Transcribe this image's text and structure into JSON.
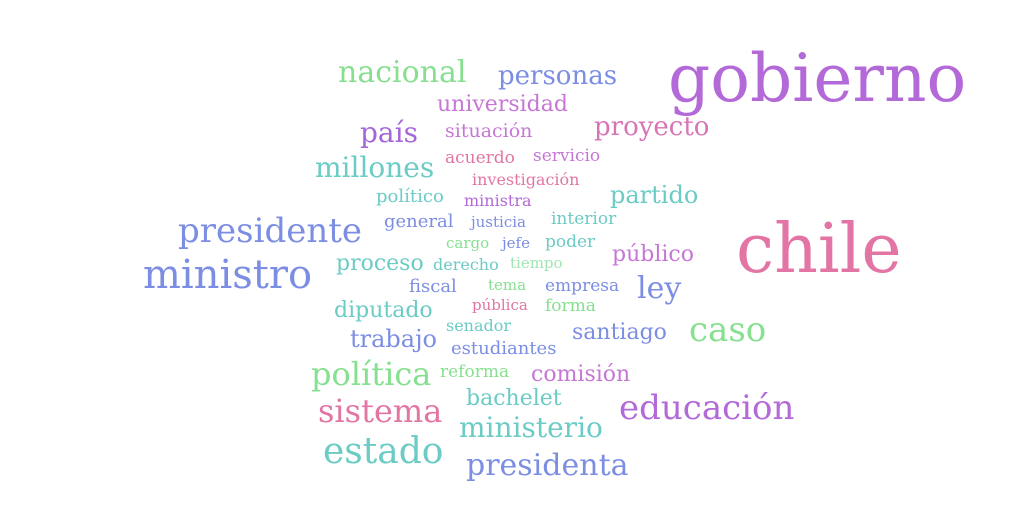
{
  "words": [
    {
      "text": "gobierno",
      "color": "#b469d8"
    },
    {
      "text": "chile",
      "color": "#e275a4"
    },
    {
      "text": "ministro",
      "color": "#7b8ee3"
    },
    {
      "text": "presidente",
      "color": "#7b8ee3"
    },
    {
      "text": "nacional",
      "color": "#86e08f"
    },
    {
      "text": "personas",
      "color": "#7b8ee3"
    },
    {
      "text": "universidad",
      "color": "#c677d6"
    },
    {
      "text": "proyecto",
      "color": "#d774b6"
    },
    {
      "text": "país",
      "color": "#a566d9"
    },
    {
      "text": "situación",
      "color": "#c677d6"
    },
    {
      "text": "millones",
      "color": "#6bcbc5"
    },
    {
      "text": "acuerdo",
      "color": "#e275a4"
    },
    {
      "text": "servicio",
      "color": "#c677d6"
    },
    {
      "text": "investigación",
      "color": "#e275a4"
    },
    {
      "text": "partido",
      "color": "#6bcbc5"
    },
    {
      "text": "político",
      "color": "#6bcbc5"
    },
    {
      "text": "ministra",
      "color": "#b469d8"
    },
    {
      "text": "general",
      "color": "#7b8ee3"
    },
    {
      "text": "justicia",
      "color": "#7b8ee3"
    },
    {
      "text": "interior",
      "color": "#6bcbc5"
    },
    {
      "text": "cargo",
      "color": "#86e08f"
    },
    {
      "text": "jefe",
      "color": "#7b8ee3"
    },
    {
      "text": "poder",
      "color": "#6bcbc5"
    },
    {
      "text": "público",
      "color": "#c677d6"
    },
    {
      "text": "proceso",
      "color": "#6bcbc5"
    },
    {
      "text": "derecho",
      "color": "#6bcbc5"
    },
    {
      "text": "tiempo",
      "color": "#9ee6b3"
    },
    {
      "text": "fiscal",
      "color": "#7b8ee3"
    },
    {
      "text": "tema",
      "color": "#86e08f"
    },
    {
      "text": "empresa",
      "color": "#7b8ee3"
    },
    {
      "text": "ley",
      "color": "#7b8ee3"
    },
    {
      "text": "diputado",
      "color": "#6bcbc5"
    },
    {
      "text": "pública",
      "color": "#e275a4"
    },
    {
      "text": "forma",
      "color": "#86e08f"
    },
    {
      "text": "trabajo",
      "color": "#7b8ee3"
    },
    {
      "text": "senador",
      "color": "#6bcbc5"
    },
    {
      "text": "santiago",
      "color": "#7b8ee3"
    },
    {
      "text": "caso",
      "color": "#86e08f"
    },
    {
      "text": "estudiantes",
      "color": "#7b8ee3"
    },
    {
      "text": "política",
      "color": "#86e08f"
    },
    {
      "text": "reforma",
      "color": "#86e08f"
    },
    {
      "text": "comisión",
      "color": "#c677d6"
    },
    {
      "text": "sistema",
      "color": "#e275a4"
    },
    {
      "text": "bachelet",
      "color": "#6bcbc5"
    },
    {
      "text": "educación",
      "color": "#b469d8"
    },
    {
      "text": "ministerio",
      "color": "#6bcbc5"
    },
    {
      "text": "estado",
      "color": "#6bcbc5"
    },
    {
      "text": "presidenta",
      "color": "#7b8ee3"
    }
  ]
}
